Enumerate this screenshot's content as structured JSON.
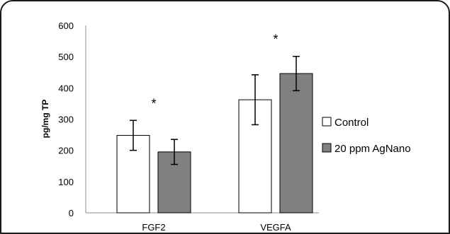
{
  "chart_data": {
    "type": "bar",
    "categories": [
      "FGF2",
      "VEGFA"
    ],
    "series": [
      {
        "name": "Control",
        "values": [
          248,
          362
        ],
        "errors": [
          48,
          80
        ],
        "color": "#ffffff"
      },
      {
        "name": "20 ppm AgNano",
        "values": [
          195,
          446
        ],
        "errors": [
          40,
          55
        ],
        "color": "#808080"
      }
    ],
    "ylabel": "pg/mg TP",
    "ylim": [
      0,
      600
    ],
    "yticks": [
      0,
      100,
      200,
      300,
      400,
      500,
      600
    ],
    "annotations": [
      "*",
      "*"
    ],
    "legend": "right",
    "grid": false
  }
}
